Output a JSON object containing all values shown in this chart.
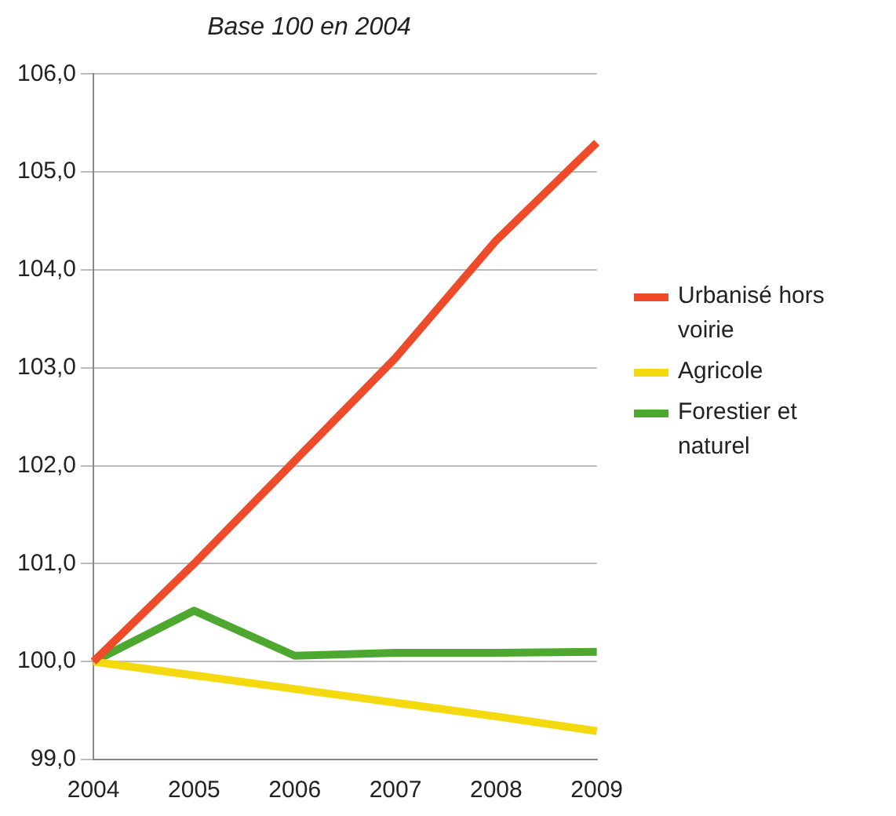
{
  "chart_data": {
    "type": "line",
    "title": "Base 100 en 2004",
    "categories": [
      "2004",
      "2005",
      "2006",
      "2007",
      "2008",
      "2009"
    ],
    "series": [
      {
        "name": "Urbanisé hors voirie",
        "color": "#ee4b2b",
        "values": [
          100,
          101.0,
          102.05,
          103.1,
          104.3,
          105.3
        ]
      },
      {
        "name": "Agricole",
        "color": "#f5d90f",
        "values": [
          100,
          99.86,
          99.72,
          99.58,
          99.44,
          99.29
        ]
      },
      {
        "name": "Forestier et naturel",
        "color": "#4ea72e",
        "values": [
          100,
          100.52,
          100.06,
          100.09,
          100.09,
          100.1
        ]
      }
    ],
    "ylim": [
      99,
      106
    ],
    "yticks": [
      {
        "value": 99,
        "label": "99,0"
      },
      {
        "value": 100,
        "label": "100,0"
      },
      {
        "value": 101,
        "label": "101,0"
      },
      {
        "value": 102,
        "label": "102,0"
      },
      {
        "value": 103,
        "label": "103,0"
      },
      {
        "value": 104,
        "label": "104,0"
      },
      {
        "value": 105,
        "label": "105,0"
      },
      {
        "value": 106,
        "label": "106,0"
      }
    ],
    "grid": "y",
    "legend": "right",
    "marker": "none",
    "line_style": "solid"
  }
}
